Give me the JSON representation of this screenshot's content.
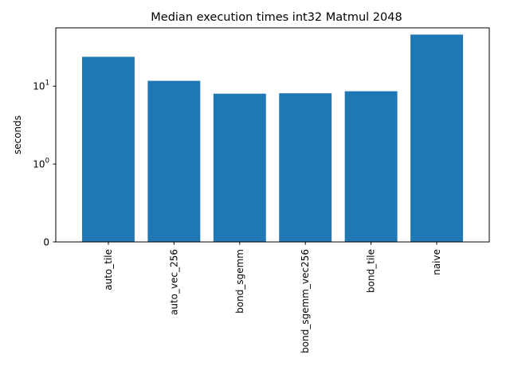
{
  "chart_data": {
    "type": "bar",
    "title": "Median execution times int32 Matmul 2048",
    "xlabel": "",
    "ylabel": "seconds",
    "yscale": "symlog",
    "linthresh": 1,
    "ylim": [
      0,
      56
    ],
    "yticks": [
      {
        "value": 0,
        "base": "0",
        "exp": ""
      },
      {
        "value": 1,
        "base": "10",
        "exp": "0"
      },
      {
        "value": 10,
        "base": "10",
        "exp": "1"
      }
    ],
    "categories": [
      "auto_tile",
      "auto_vec_256",
      "bond_sgemm",
      "bond_sgemm_vec256",
      "bond_tile",
      "naive"
    ],
    "values": [
      23.8,
      11.7,
      8.0,
      8.1,
      8.6,
      45.9
    ],
    "bar_color": "#1f77b4",
    "grid": false,
    "legend": "none"
  }
}
